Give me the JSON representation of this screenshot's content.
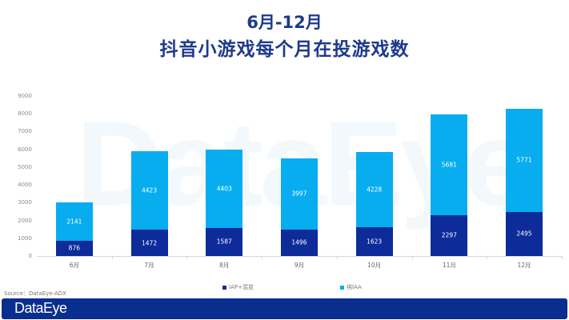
{
  "title": {
    "line1": "6月-12月",
    "line2": "抖音小游戏每个月在投游戏数"
  },
  "watermark": "DataEye",
  "source": "Source：DataEye-ADX",
  "footer": {
    "logo": "DataEye"
  },
  "colors": {
    "iap": "#0d2b99",
    "iaa": "#08adf0",
    "title": "#1e3a8a",
    "footer": "#0a2e8f"
  },
  "legend": [
    {
      "label": "IAP+混变",
      "color": "#0d2b99"
    },
    {
      "label": "纯IAA",
      "color": "#08adf0"
    }
  ],
  "chart_data": {
    "type": "bar",
    "stacked": true,
    "title": "6月-12月 抖音小游戏每个月在投游戏数",
    "xlabel": "",
    "ylabel": "",
    "categories": [
      "6月",
      "7月",
      "8月",
      "9月",
      "10月",
      "11月",
      "12月"
    ],
    "series": [
      {
        "name": "IAP+混变",
        "values": [
          876,
          1472,
          1587,
          1496,
          1623,
          2297,
          2495
        ]
      },
      {
        "name": "纯IAA",
        "values": [
          2141,
          4423,
          4403,
          3997,
          4228,
          5681,
          5771
        ]
      }
    ],
    "yticks": [
      "0",
      "1000",
      "2000",
      "3000",
      "4000",
      "5000",
      "6000",
      "7000",
      "8000",
      "9000"
    ],
    "ylim": [
      0,
      9000
    ],
    "grid": false,
    "legend_position": "bottom"
  }
}
